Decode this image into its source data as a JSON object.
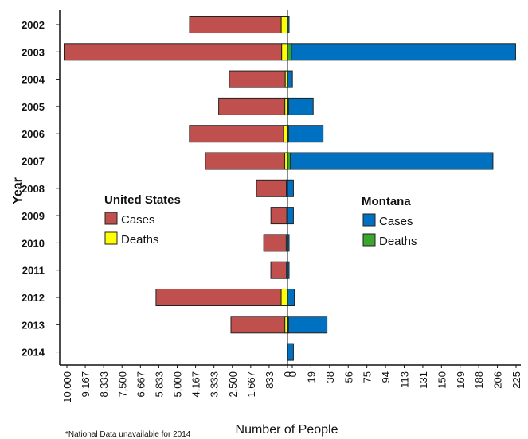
{
  "chart_data": {
    "type": "bar",
    "orientation": "horizontal",
    "layout": "butterfly",
    "xlabel": "Number of People",
    "ylabel": "Year",
    "footnote": "*National Data unavailable for 2014",
    "categories": [
      "2002",
      "2003",
      "2004",
      "2005",
      "2006",
      "2007",
      "2008",
      "2009",
      "2010",
      "2011",
      "2012",
      "2013",
      "2014"
    ],
    "left_panel": {
      "legend_title": "United States",
      "xlim": [
        0,
        10000
      ],
      "tick_labels": [
        "10,000",
        "9,167",
        "8,333",
        "7,500",
        "6,667",
        "5,833",
        "5,000",
        "4,167",
        "3,333",
        "2,500",
        "1,667",
        "833",
        "0"
      ],
      "series": [
        {
          "name": "Cases",
          "color": "#c0504d",
          "values": [
            4156,
            9862,
            2539,
            3000,
            4269,
            3598,
            1356,
            720,
            1021,
            712,
            5674,
            2444,
            null
          ]
        },
        {
          "name": "Deaths",
          "color": "#ffff00",
          "values": [
            284,
            264,
            100,
            119,
            177,
            124,
            51,
            32,
            57,
            43,
            286,
            119,
            null
          ]
        }
      ]
    },
    "right_panel": {
      "legend_title": "Montana",
      "xlim": [
        0,
        225
      ],
      "tick_labels": [
        "0",
        "19",
        "38",
        "56",
        "75",
        "94",
        "113",
        "131",
        "150",
        "169",
        "188",
        "206",
        "225"
      ],
      "series": [
        {
          "name": "Cases",
          "color": "#0070c0",
          "values": [
            1,
            227,
            5,
            25,
            35,
            205,
            6,
            6,
            1,
            1,
            7,
            39,
            6
          ]
        },
        {
          "name": "Deaths",
          "color": "#3aa62e",
          "values": [
            0,
            4,
            0,
            1,
            1,
            3,
            0,
            0,
            0,
            0,
            0,
            1,
            0
          ]
        }
      ]
    },
    "legend_position": "center-left and center-right inside plot",
    "grid": false
  }
}
